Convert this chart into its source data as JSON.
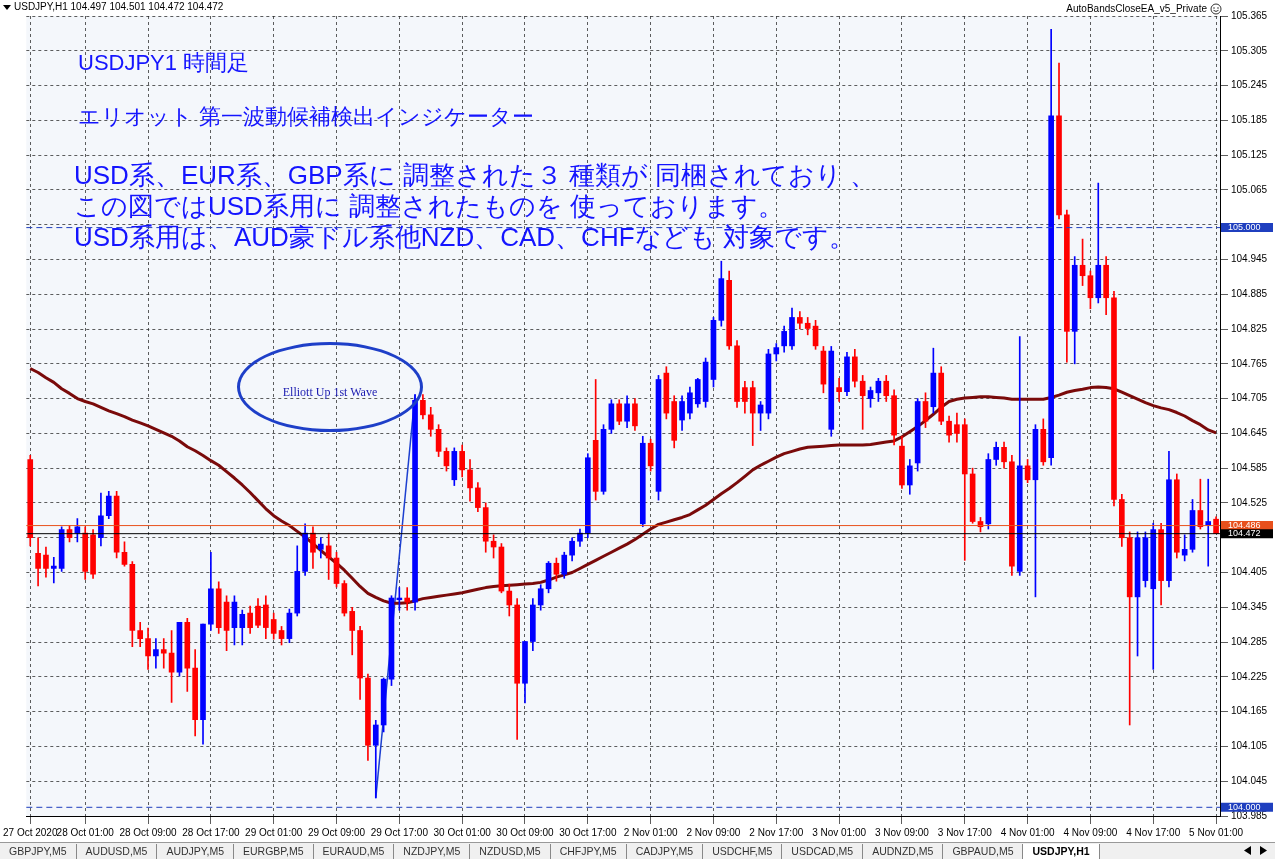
{
  "chart_data": {
    "type": "candlestick",
    "title": "USDJPY1 時間足",
    "subtitle": "エリオット 第一波動候補検出インジケーター",
    "annotations": [
      "USDJPY,H1  104.497 104.501 104.472 104.472",
      "USD系、EUR系、GBP系に 調整された３ 種類が 同梱されており 、",
      "この図ではUSD系用に 調整されたものを 使っております。",
      "USD系用は、AUD豪ドル系他NZD、CAD、CHFなども 対象です。",
      "AutoBandsCloseEA_v5_Private",
      "Elliott Up 1st Wave",
      "GBPJPY,M5",
      "AUDUSD,M5",
      "AUDJPY,M5",
      "EURGBP,M5",
      "EURAUD,M5",
      "NZDJPY,M5",
      "NZDUSD,M5",
      "CHFJPY,M5",
      "CADJPY,M5",
      "USDCHF,M5",
      "USDCAD,M5",
      "AUDNZD,M5",
      "GBPAUD,M5",
      "USDJPY,H1"
    ],
    "categories": [
      "27 Oct 2020",
      null,
      null,
      null,
      null,
      null,
      null,
      "28 Oct 01:00",
      null,
      null,
      null,
      null,
      null,
      null,
      null,
      "28 Oct 09:00",
      null,
      null,
      null,
      null,
      null,
      null,
      null,
      "28 Oct 17:00",
      null,
      null,
      null,
      null,
      null,
      null,
      null,
      "29 Oct 01:00",
      null,
      null,
      null,
      null,
      null,
      null,
      null,
      "29 Oct 09:00",
      null,
      null,
      null,
      null,
      null,
      null,
      null,
      "29 Oct 17:00",
      null,
      null,
      null,
      null,
      null,
      null,
      null,
      "30 Oct 01:00",
      null,
      null,
      null,
      null,
      null,
      null,
      null,
      "30 Oct 09:00",
      null,
      null,
      null,
      null,
      null,
      null,
      null,
      "30 Oct 17:00",
      null,
      null,
      null,
      null,
      null,
      null,
      null,
      "2 Nov 01:00",
      null,
      null,
      null,
      null,
      null,
      null,
      null,
      "2 Nov 09:00",
      null,
      null,
      null,
      null,
      null,
      null,
      null,
      "2 Nov 17:00",
      null,
      null,
      null,
      null,
      null,
      null,
      null,
      "3 Nov 01:00",
      null,
      null,
      null,
      null,
      null,
      null,
      null,
      "3 Nov 09:00",
      null,
      null,
      null,
      null,
      null,
      null,
      null,
      "3 Nov 17:00",
      null,
      null,
      null,
      null,
      null,
      null,
      null,
      "4 Nov 01:00",
      null,
      null,
      null,
      null,
      null,
      null,
      null,
      "4 Nov 09:00",
      null,
      null,
      null,
      null,
      null,
      null,
      null,
      "4 Nov 17:00",
      null,
      null,
      null,
      null,
      null,
      null,
      null,
      "5 Nov 01:00"
    ],
    "ohlc": [
      [
        104.6,
        104.607,
        104.451,
        104.465
      ],
      [
        104.438,
        104.465,
        104.382,
        104.412
      ],
      [
        104.435,
        104.449,
        104.397,
        104.412
      ],
      [
        104.412,
        104.431,
        104.387,
        104.416
      ],
      [
        104.412,
        104.484,
        104.407,
        104.479
      ],
      [
        104.479,
        104.486,
        104.458,
        104.465
      ],
      [
        104.473,
        104.498,
        104.458,
        104.484
      ],
      [
        104.473,
        104.484,
        104.393,
        104.407
      ],
      [
        104.47,
        104.479,
        104.395,
        104.402
      ],
      [
        104.465,
        104.542,
        104.451,
        104.503
      ],
      [
        104.503,
        104.545,
        104.498,
        104.537
      ],
      [
        104.537,
        104.545,
        104.43,
        104.44
      ],
      [
        104.44,
        104.458,
        104.416,
        104.419
      ],
      [
        104.419,
        104.424,
        104.277,
        104.305
      ],
      [
        104.305,
        104.319,
        104.277,
        104.291
      ],
      [
        104.291,
        104.309,
        104.238,
        104.261
      ],
      [
        104.261,
        104.291,
        104.24,
        104.272
      ],
      [
        104.272,
        104.291,
        104.24,
        104.266
      ],
      [
        104.266,
        104.305,
        104.181,
        104.233
      ],
      [
        104.233,
        104.319,
        104.226,
        104.319
      ],
      [
        104.319,
        104.326,
        104.2,
        104.24
      ],
      [
        104.24,
        104.272,
        104.123,
        104.151
      ],
      [
        104.151,
        104.316,
        104.109,
        104.316
      ],
      [
        104.316,
        104.44,
        104.305,
        104.377
      ],
      [
        104.377,
        104.389,
        104.3,
        104.31
      ],
      [
        104.354,
        104.365,
        104.27,
        104.305
      ],
      [
        104.31,
        104.365,
        104.28,
        104.354
      ],
      [
        104.31,
        104.34,
        104.28,
        104.333
      ],
      [
        104.335,
        104.347,
        104.3,
        104.31
      ],
      [
        104.347,
        104.36,
        104.31,
        104.314
      ],
      [
        104.349,
        104.365,
        104.291,
        104.31
      ],
      [
        104.324,
        104.335,
        104.29,
        104.3
      ],
      [
        104.305,
        104.312,
        104.28,
        104.291
      ],
      [
        104.291,
        104.342,
        104.284,
        104.335
      ],
      [
        104.335,
        104.451,
        104.33,
        104.407
      ],
      [
        104.407,
        104.489,
        104.4,
        104.473
      ],
      [
        104.473,
        104.484,
        104.412,
        104.44
      ],
      [
        104.445,
        104.465,
        104.43,
        104.454
      ],
      [
        104.451,
        104.473,
        104.393,
        104.43
      ],
      [
        104.43,
        104.44,
        104.38,
        104.386
      ],
      [
        104.386,
        104.391,
        104.33,
        104.335
      ],
      [
        104.338,
        104.345,
        104.263,
        104.305
      ],
      [
        104.305,
        104.312,
        104.186,
        104.223
      ],
      [
        104.223,
        104.23,
        104.081,
        104.107
      ],
      [
        104.107,
        104.15,
        104.016,
        104.142
      ],
      [
        104.142,
        104.223,
        104.13,
        104.221
      ],
      [
        104.221,
        104.365,
        104.21,
        104.361
      ],
      [
        104.358,
        104.379,
        104.34,
        104.361
      ],
      [
        104.361,
        104.379,
        104.34,
        104.354
      ],
      [
        104.354,
        104.712,
        104.34,
        104.702
      ],
      [
        104.702,
        104.712,
        104.67,
        104.677
      ],
      [
        104.677,
        104.69,
        104.64,
        104.652
      ],
      [
        104.652,
        104.66,
        104.605,
        104.614
      ],
      [
        104.614,
        104.62,
        104.58,
        104.589
      ],
      [
        104.565,
        104.62,
        104.555,
        104.614
      ],
      [
        104.614,
        104.625,
        104.57,
        104.582
      ],
      [
        104.582,
        104.6,
        104.528,
        104.551
      ],
      [
        104.551,
        104.56,
        104.51,
        104.517
      ],
      [
        104.517,
        104.525,
        104.44,
        104.459
      ],
      [
        104.459,
        104.47,
        104.43,
        104.449
      ],
      [
        104.449,
        104.455,
        104.37,
        104.373
      ],
      [
        104.373,
        104.385,
        104.33,
        104.349
      ],
      [
        104.349,
        104.36,
        104.117,
        104.214
      ],
      [
        104.214,
        104.286,
        104.18,
        104.286
      ],
      [
        104.286,
        104.36,
        104.27,
        104.349
      ],
      [
        104.349,
        104.384,
        104.34,
        104.377
      ],
      [
        104.377,
        104.424,
        104.37,
        104.421
      ],
      [
        104.421,
        104.43,
        104.39,
        104.402
      ],
      [
        104.402,
        104.44,
        104.395,
        104.435
      ],
      [
        104.435,
        104.465,
        104.425,
        104.459
      ],
      [
        104.459,
        104.48,
        104.45,
        104.473
      ],
      [
        104.473,
        104.61,
        104.465,
        104.603
      ],
      [
        104.633,
        104.738,
        104.53,
        104.545
      ],
      [
        104.545,
        104.66,
        104.54,
        104.652
      ],
      [
        104.652,
        104.703,
        104.645,
        104.696
      ],
      [
        104.696,
        104.703,
        104.66,
        104.666
      ],
      [
        104.666,
        104.71,
        104.655,
        104.696
      ],
      [
        104.696,
        104.705,
        104.65,
        104.658
      ],
      [
        104.489,
        104.64,
        104.484,
        104.628
      ],
      [
        104.628,
        104.635,
        104.58,
        104.589
      ],
      [
        104.545,
        104.745,
        104.53,
        104.738
      ],
      [
        104.749,
        104.76,
        104.67,
        104.68
      ],
      [
        104.7,
        104.71,
        104.62,
        104.633
      ],
      [
        104.668,
        104.71,
        104.65,
        104.7
      ],
      [
        104.68,
        104.725,
        104.67,
        104.715
      ],
      [
        104.696,
        104.74,
        104.69,
        104.738
      ],
      [
        104.7,
        104.775,
        104.69,
        104.768
      ],
      [
        104.738,
        104.845,
        104.725,
        104.84
      ],
      [
        104.84,
        104.942,
        104.83,
        104.912
      ],
      [
        104.909,
        104.925,
        104.79,
        104.796
      ],
      [
        104.796,
        104.805,
        104.69,
        104.7
      ],
      [
        104.724,
        104.735,
        104.68,
        104.7
      ],
      [
        104.724,
        104.735,
        104.624,
        104.68
      ],
      [
        104.68,
        104.7,
        104.65,
        104.694
      ],
      [
        104.68,
        104.79,
        104.67,
        104.782
      ],
      [
        104.782,
        104.8,
        104.77,
        104.793
      ],
      [
        104.796,
        104.83,
        104.785,
        104.821
      ],
      [
        104.796,
        104.861,
        104.79,
        104.845
      ],
      [
        104.845,
        104.855,
        104.825,
        104.835
      ],
      [
        104.835,
        104.845,
        104.815,
        104.826
      ],
      [
        104.83,
        104.84,
        104.79,
        104.796
      ],
      [
        104.787,
        104.795,
        104.715,
        104.73
      ],
      [
        104.652,
        104.795,
        104.64,
        104.787
      ],
      [
        104.724,
        104.74,
        104.7,
        104.717
      ],
      [
        104.717,
        104.785,
        104.71,
        104.777
      ],
      [
        104.777,
        104.79,
        104.725,
        104.735
      ],
      [
        104.735,
        104.745,
        104.652,
        104.71
      ],
      [
        104.705,
        104.725,
        104.69,
        104.719
      ],
      [
        104.715,
        104.74,
        104.7,
        104.735
      ],
      [
        104.735,
        104.745,
        104.7,
        104.71
      ],
      [
        104.71,
        104.72,
        104.625,
        104.642
      ],
      [
        104.623,
        104.64,
        104.55,
        104.556
      ],
      [
        104.556,
        104.6,
        104.54,
        104.589
      ],
      [
        104.594,
        104.705,
        104.58,
        104.7
      ],
      [
        104.7,
        104.715,
        104.655,
        104.666
      ],
      [
        104.691,
        104.792,
        104.68,
        104.749
      ],
      [
        104.749,
        104.76,
        104.66,
        104.666
      ],
      [
        104.666,
        104.675,
        104.63,
        104.642
      ],
      [
        104.66,
        104.68,
        104.63,
        104.645
      ],
      [
        104.66,
        104.67,
        104.426,
        104.575
      ],
      [
        104.575,
        104.585,
        104.49,
        104.493
      ],
      [
        104.493,
        104.5,
        104.475,
        104.484
      ],
      [
        104.489,
        104.61,
        104.48,
        104.6
      ],
      [
        104.6,
        104.63,
        104.59,
        104.621
      ],
      [
        104.621,
        104.63,
        104.585,
        104.596
      ],
      [
        104.596,
        104.607,
        104.4,
        104.416
      ],
      [
        104.407,
        104.812,
        104.4,
        104.589
      ],
      [
        104.589,
        104.6,
        104.56,
        104.565
      ],
      [
        104.565,
        104.66,
        104.363,
        104.652
      ],
      [
        104.652,
        104.67,
        104.59,
        104.596
      ],
      [
        104.603,
        105.342,
        104.59,
        105.193
      ],
      [
        105.193,
        105.284,
        105.015,
        105.022
      ],
      [
        105.022,
        105.03,
        104.768,
        104.821
      ],
      [
        104.821,
        104.95,
        104.765,
        104.935
      ],
      [
        104.935,
        104.98,
        104.9,
        104.917
      ],
      [
        104.917,
        104.925,
        104.86,
        104.879
      ],
      [
        104.879,
        105.077,
        104.87,
        104.935
      ],
      [
        104.935,
        104.95,
        104.85,
        104.879
      ],
      [
        104.879,
        104.89,
        104.52,
        104.531
      ],
      [
        104.531,
        104.54,
        104.45,
        104.465
      ],
      [
        104.465,
        104.475,
        104.142,
        104.363
      ],
      [
        104.363,
        104.475,
        104.261,
        104.465
      ],
      [
        104.391,
        104.475,
        104.38,
        104.465
      ],
      [
        104.377,
        104.49,
        104.238,
        104.479
      ],
      [
        104.479,
        104.49,
        104.349,
        104.391
      ],
      [
        104.391,
        104.614,
        104.38,
        104.565
      ],
      [
        104.565,
        104.575,
        104.43,
        104.44
      ],
      [
        104.435,
        104.47,
        104.425,
        104.445
      ],
      [
        104.445,
        104.531,
        104.44,
        104.512
      ],
      [
        104.512,
        104.566,
        104.48,
        104.484
      ],
      [
        104.487,
        104.566,
        104.416,
        104.493
      ],
      [
        104.497,
        104.501,
        104.472,
        104.472
      ]
    ],
    "colors": [
      "#ff0000",
      "#ff0000",
      "#ff0000",
      "#0000ff",
      "#0000ff",
      "#ff0000",
      "#0000ff",
      "#ff0000",
      "#ff0000",
      "#0000ff",
      "#0000ff",
      "#ff0000",
      "#ff0000",
      "#ff0000",
      "#ff0000",
      "#ff0000",
      "#0000ff",
      "#ff0000",
      "#ff0000",
      "#0000ff",
      "#ff0000",
      "#ff0000",
      "#0000ff",
      "#0000ff",
      "#ff0000",
      "#ff0000",
      "#0000ff",
      "#0000ff",
      "#ff0000",
      "#ff0000",
      "#ff0000",
      "#ff0000",
      "#ff0000",
      "#0000ff",
      "#0000ff",
      "#0000ff",
      "#ff0000",
      "#0000ff",
      "#ff0000",
      "#ff0000",
      "#ff0000",
      "#ff0000",
      "#ff0000",
      "#ff0000",
      "#0000ff",
      "#0000ff",
      "#0000ff",
      "#0000ff",
      "#ff0000",
      "#0000ff",
      "#ff0000",
      "#ff0000",
      "#ff0000",
      "#ff0000",
      "#0000ff",
      "#ff0000",
      "#ff0000",
      "#ff0000",
      "#ff0000",
      "#ff0000",
      "#ff0000",
      "#ff0000",
      "#ff0000",
      "#0000ff",
      "#0000ff",
      "#0000ff",
      "#0000ff",
      "#ff0000",
      "#0000ff",
      "#0000ff",
      "#0000ff",
      "#0000ff",
      "#ff0000",
      "#0000ff",
      "#0000ff",
      "#ff0000",
      "#0000ff",
      "#ff0000",
      "#0000ff",
      "#ff0000",
      "#0000ff",
      "#ff0000",
      "#ff0000",
      "#0000ff",
      "#0000ff",
      "#0000ff",
      "#0000ff",
      "#0000ff",
      "#0000ff",
      "#ff0000",
      "#ff0000",
      "#ff0000",
      "#ff0000",
      "#0000ff",
      "#0000ff",
      "#0000ff",
      "#0000ff",
      "#0000ff",
      "#ff0000",
      "#ff0000",
      "#ff0000",
      "#ff0000",
      "#0000ff",
      "#ff0000",
      "#0000ff",
      "#ff0000",
      "#ff0000",
      "#0000ff",
      "#0000ff",
      "#ff0000",
      "#ff0000",
      "#ff0000",
      "#0000ff",
      "#0000ff",
      "#ff0000",
      "#0000ff",
      "#ff0000",
      "#ff0000",
      "#ff0000",
      "#ff0000",
      "#ff0000",
      "#ff0000",
      "#0000ff",
      "#0000ff",
      "#ff0000",
      "#ff0000",
      "#0000ff",
      "#ff0000",
      "#0000ff",
      "#ff0000",
      "#0000ff",
      "#ff0000",
      "#ff0000",
      "#0000ff",
      "#ff0000",
      "#ff0000",
      "#0000ff",
      "#ff0000",
      "#ff0000",
      "#ff0000",
      "#ff0000",
      "#0000ff",
      "#0000ff",
      "#0000ff",
      "#ff0000",
      "#0000ff",
      "#ff0000",
      "#0000ff",
      "#0000ff",
      "#ff0000",
      "#0000ff",
      "#ff0000"
    ],
    "series": [
      {
        "type": "line",
        "color": "#7a0a0a",
        "values": [
          104.757,
          104.75,
          104.741,
          104.733,
          104.722,
          104.714,
          104.705,
          104.7,
          104.696,
          104.69,
          104.684,
          104.679,
          104.674,
          104.668,
          104.663,
          104.658,
          104.652,
          104.646,
          104.64,
          104.632,
          104.622,
          104.615,
          104.607,
          104.598,
          104.59,
          104.579,
          104.568,
          104.556,
          104.543,
          104.529,
          104.515,
          104.503,
          104.494,
          104.486,
          104.476,
          104.466,
          104.455,
          104.443,
          104.432,
          104.421,
          104.409,
          104.395,
          104.381,
          104.369,
          104.362,
          104.356,
          104.352,
          104.352,
          104.353,
          104.356,
          104.36,
          104.362,
          104.364,
          104.366,
          104.368,
          104.37,
          104.373,
          104.376,
          104.379,
          104.381,
          104.382,
          104.383,
          104.384,
          104.385,
          104.386,
          104.388,
          104.392,
          104.397,
          104.401,
          104.405,
          104.412,
          104.419,
          104.426,
          104.433,
          104.44,
          104.447,
          104.454,
          104.462,
          104.471,
          104.48,
          104.488,
          104.492,
          104.496,
          104.5,
          104.505,
          104.513,
          104.521,
          104.531,
          104.541,
          104.55,
          104.56,
          104.571,
          104.582,
          104.59,
          104.597,
          104.604,
          104.61,
          104.614,
          104.618,
          104.621,
          104.622,
          104.623,
          104.624,
          104.625,
          104.625,
          104.625,
          104.625,
          104.626,
          104.628,
          104.63,
          104.632,
          104.639,
          104.648,
          104.657,
          104.667,
          104.678,
          104.69,
          104.7,
          104.704,
          104.706,
          104.707,
          104.708,
          104.708,
          104.707,
          104.706,
          104.704,
          104.704,
          104.704,
          104.704,
          104.704,
          104.707,
          104.711,
          104.716,
          104.719,
          104.721,
          104.724,
          104.725,
          104.724,
          104.722,
          104.716,
          104.71,
          104.704,
          104.698,
          104.693,
          104.689,
          104.686,
          104.681,
          104.675,
          104.667,
          104.66,
          104.651,
          104.646
        ]
      },
      {
        "type": "line",
        "color": "#1c3fd0",
        "values": [
          null,
          null,
          null,
          null,
          null,
          null,
          null,
          null,
          null,
          null,
          null,
          null,
          null,
          null,
          null,
          null,
          null,
          null,
          null,
          null,
          null,
          null,
          null,
          null,
          null,
          null,
          null,
          null,
          null,
          null,
          null,
          null,
          null,
          null,
          null,
          null,
          null,
          null,
          null,
          null,
          null,
          null,
          null,
          null,
          104.016,
          null,
          null,
          null,
          null,
          104.712,
          null,
          null,
          null,
          null,
          null,
          null,
          null,
          null,
          null,
          null,
          null,
          null,
          null,
          null,
          null,
          null,
          null,
          null,
          null,
          null,
          null,
          null,
          null,
          null,
          null,
          null,
          null,
          null,
          null,
          null,
          null,
          null,
          null,
          null,
          null,
          null,
          null,
          null,
          null,
          null,
          null,
          null,
          null,
          null,
          null,
          null,
          null,
          null,
          null,
          null,
          null,
          null,
          null,
          null,
          null,
          null,
          null,
          null,
          null,
          null,
          null,
          null,
          null,
          null,
          null,
          null,
          null,
          null,
          null,
          null,
          null,
          null,
          null,
          null,
          null,
          null,
          null,
          null,
          null,
          null,
          null,
          null,
          null,
          null,
          null,
          null,
          null,
          null,
          null,
          null,
          null,
          null,
          null,
          null,
          null,
          null,
          null,
          null,
          null,
          null,
          null,
          null
        ]
      }
    ],
    "ylim": [
      103.985,
      105.365
    ],
    "yticks": [
      105.365,
      105.305,
      105.245,
      105.185,
      105.125,
      105.065,
      {
        "value": 105.005,
        "label": null
      },
      104.945,
      104.885,
      104.825,
      104.765,
      104.705,
      104.645,
      104.585,
      104.525,
      {
        "value": 104.465,
        "label": null
      },
      104.405,
      104.345,
      104.285,
      104.225,
      104.165,
      104.105,
      104.045,
      103.985
    ],
    "ref_lines": [
      {
        "axis": "y",
        "value": 105.0,
        "label": "105.000",
        "color": "#1f3fbf",
        "line_style": "dashed"
      },
      {
        "axis": "y",
        "value": 104.0,
        "label": "104.000",
        "color": "#1f3fbf",
        "line_style": "dashed"
      },
      {
        "axis": "y",
        "value": 104.486,
        "label": "104.486",
        "color": "#e8501c",
        "line_style": "solid"
      },
      {
        "axis": "y",
        "value": 104.472,
        "label": "104.472",
        "color": "#000000",
        "line_style": "solid"
      }
    ],
    "grid": true,
    "legend": false,
    "marker": "none",
    "line_style": "solid"
  }
}
